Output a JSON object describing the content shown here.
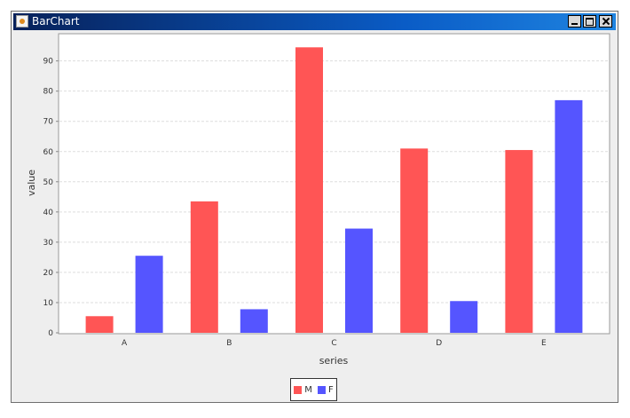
{
  "window": {
    "title": "BarChart"
  },
  "colors": {
    "title_bar": "#0a5cc6",
    "window_bg": "#eeeeee",
    "plot_bg": "#ffffff",
    "series_m": "#ff5555",
    "series_f": "#5555ff",
    "grid": "#dddddd"
  },
  "chart_data": {
    "type": "bar",
    "title": "",
    "xlabel": "series",
    "ylabel": "value",
    "categories": [
      "A",
      "B",
      "C",
      "D",
      "E"
    ],
    "series": [
      {
        "name": "M",
        "color": "#ff5555",
        "values": [
          5.5,
          43.5,
          94.5,
          61.0,
          60.5
        ]
      },
      {
        "name": "F",
        "color": "#5555ff",
        "values": [
          25.5,
          7.8,
          34.5,
          10.5,
          77.0
        ]
      }
    ],
    "ylim": [
      0,
      99
    ],
    "yticks": [
      "0",
      "10",
      "20",
      "30",
      "40",
      "50",
      "60",
      "70",
      "80",
      "90"
    ],
    "grid": true,
    "legend_position": "bottom"
  }
}
